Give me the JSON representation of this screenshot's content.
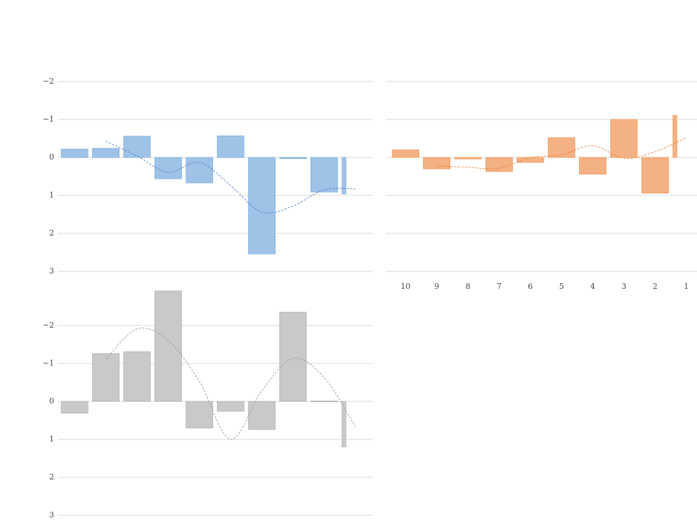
{
  "chart_data": [
    {
      "type": "bar",
      "y_inverted": true,
      "ylim": [
        -3,
        3
      ],
      "yticks": [
        {
          "value": -2,
          "label": "−2"
        },
        {
          "value": -1,
          "label": "−1"
        },
        0,
        1,
        2,
        3
      ],
      "ytick_labels": true,
      "grid": true,
      "categories": [
        null,
        null,
        null,
        null,
        null,
        null,
        null,
        null,
        null,
        null
      ],
      "values": [
        -0.22,
        -0.24,
        -0.56,
        0.56,
        0.67,
        -0.57,
        2.54,
        0.03,
        0.91,
        0.96
      ],
      "color": "#9fc3e7",
      "edge_color": "#7aaee0",
      "trend": [
        null,
        -0.43,
        -0.04,
        0.39,
        0.13,
        0.74,
        1.44,
        1.28,
        0.85,
        0.83
      ],
      "trend_color": "#4a7fc4"
    },
    {
      "type": "bar",
      "y_inverted": true,
      "ylim": [
        -3,
        3
      ],
      "yticks": [
        -2,
        -1,
        0,
        1,
        2,
        3
      ],
      "ytick_labels": false,
      "grid": true,
      "categories": [
        10,
        9,
        8,
        7,
        6,
        5,
        4,
        3,
        2,
        1
      ],
      "values": [
        -0.2,
        0.3,
        0.04,
        0.37,
        0.13,
        -0.52,
        0.44,
        -1.0,
        0.94,
        -1.11
      ],
      "color": "#f4b183",
      "edge_color": "#ee9a5e",
      "trend": [
        null,
        0.22,
        0.26,
        0.28,
        0.0,
        -0.07,
        -0.31,
        0.02,
        -0.15,
        -0.52
      ],
      "trend_color": "#ed7d31"
    },
    {
      "type": "bar",
      "y_inverted": true,
      "ylim": [
        -3,
        3
      ],
      "yticks": [
        {
          "value": -2,
          "label": "−2"
        },
        {
          "value": -1,
          "label": "−1"
        },
        0,
        1,
        2,
        3
      ],
      "ytick_labels": true,
      "grid": true,
      "categories": [
        null,
        null,
        null,
        null,
        null,
        null,
        null,
        null,
        null,
        null
      ],
      "values": [
        0.31,
        -1.26,
        -1.31,
        -2.91,
        0.7,
        0.26,
        0.74,
        -2.35,
        -0.01,
        1.2
      ],
      "color": "#c9c9c9",
      "edge_color": "#b0b0b0",
      "trend": [
        null,
        -1.11,
        -1.91,
        -1.61,
        -0.52,
        1.0,
        -0.28,
        -1.13,
        -0.63,
        0.67
      ],
      "trend_color": "#9a9a9a"
    }
  ]
}
